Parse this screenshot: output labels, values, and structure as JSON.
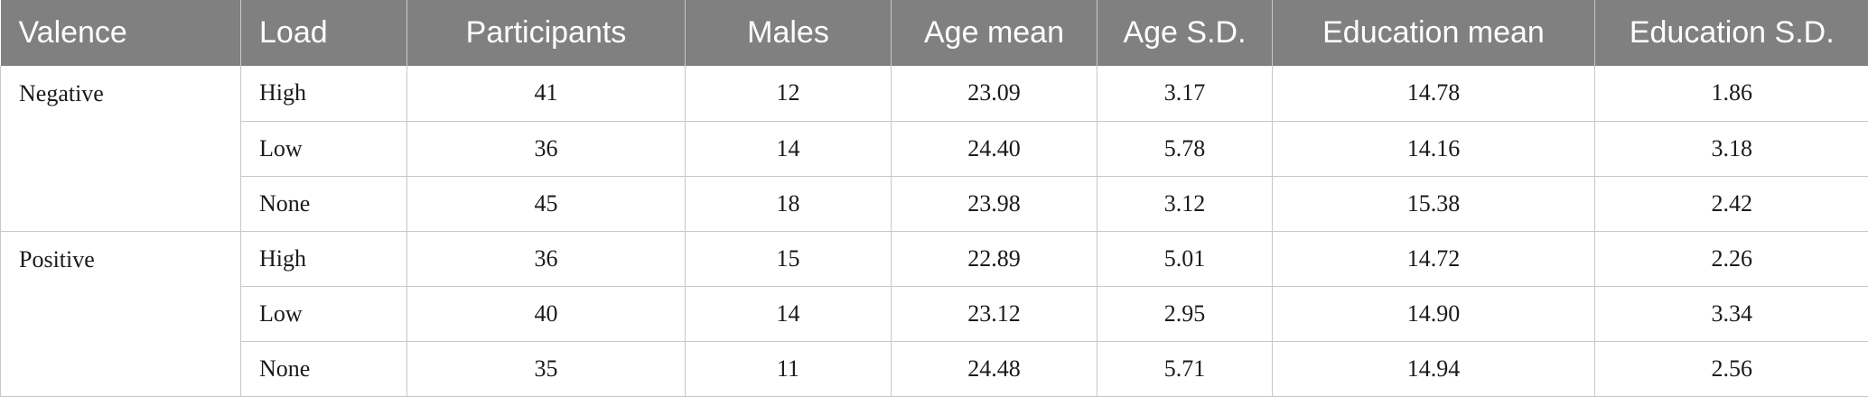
{
  "table": {
    "headers": [
      "Valence",
      "Load",
      "Participants",
      "Males",
      "Age mean",
      "Age S.D.",
      "Education mean",
      "Education S.D."
    ],
    "groups": [
      {
        "valence": "Negative",
        "rows": [
          {
            "load": "High",
            "participants": "41",
            "males": "12",
            "age_mean": "23.09",
            "age_sd": "3.17",
            "education_mean": "14.78",
            "education_sd": "1.86"
          },
          {
            "load": "Low",
            "participants": "36",
            "males": "14",
            "age_mean": "24.40",
            "age_sd": "5.78",
            "education_mean": "14.16",
            "education_sd": "3.18"
          },
          {
            "load": "None",
            "participants": "45",
            "males": "18",
            "age_mean": "23.98",
            "age_sd": "3.12",
            "education_mean": "15.38",
            "education_sd": "2.42"
          }
        ]
      },
      {
        "valence": "Positive",
        "rows": [
          {
            "load": "High",
            "participants": "36",
            "males": "15",
            "age_mean": "22.89",
            "age_sd": "5.01",
            "education_mean": "14.72",
            "education_sd": "2.26"
          },
          {
            "load": "Low",
            "participants": "40",
            "males": "14",
            "age_mean": "23.12",
            "age_sd": "2.95",
            "education_mean": "14.90",
            "education_sd": "3.34"
          },
          {
            "load": "None",
            "participants": "35",
            "males": "11",
            "age_mean": "24.48",
            "age_sd": "5.71",
            "education_mean": "14.94",
            "education_sd": "2.56"
          }
        ]
      }
    ],
    "colors": {
      "header_bg": "#7f807f",
      "header_text": "#ffffff",
      "grid": "#c8c8c8"
    }
  }
}
